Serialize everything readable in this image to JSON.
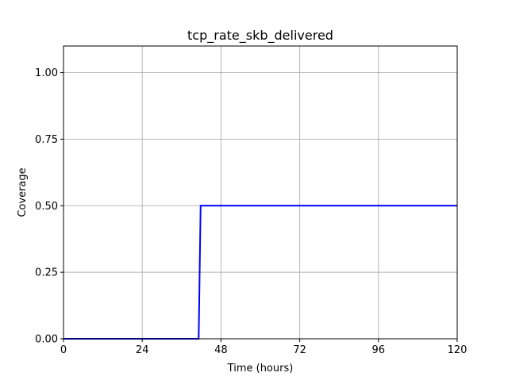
{
  "chart_data": {
    "type": "line",
    "title": "tcp_rate_skb_delivered",
    "xlabel": "Time (hours)",
    "ylabel": "Coverage",
    "xlim": [
      0,
      120
    ],
    "ylim": [
      0,
      1.1
    ],
    "xticks": [
      0,
      24,
      48,
      72,
      96,
      120
    ],
    "xtick_labels": [
      "0",
      "24",
      "48",
      "72",
      "96",
      "120"
    ],
    "yticks": [
      0,
      0.25,
      0.5,
      0.75,
      1.0
    ],
    "ytick_labels": [
      "0.00",
      "0.25",
      "0.50",
      "0.75",
      "1.00"
    ],
    "grid": true,
    "series": [
      {
        "color": "#0000ff",
        "x": [
          0,
          41.2,
          41.8,
          120
        ],
        "y": [
          0,
          0,
          0.5,
          0.5
        ]
      }
    ]
  }
}
